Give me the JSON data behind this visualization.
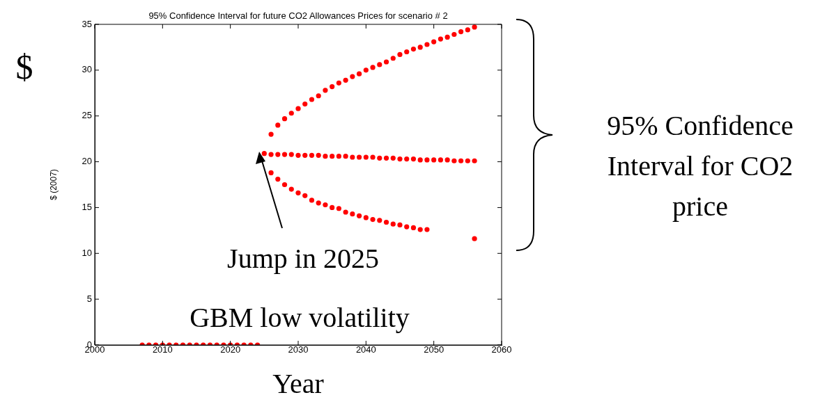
{
  "chart_data": {
    "type": "scatter",
    "title": "95% Confidence Interval for future CO2 Allowances Prices for scenario # 2",
    "xlabel": "Year",
    "ylabel": "$ (2007)",
    "xlim": [
      2000,
      2060
    ],
    "xticks": [
      2000,
      2010,
      2020,
      2030,
      2040,
      2050,
      2060
    ],
    "ylim": [
      0,
      35
    ],
    "yticks": [
      0,
      5,
      10,
      15,
      20,
      25,
      30,
      35
    ],
    "grid": false,
    "legend": false,
    "marker": "circle",
    "series": [
      {
        "color": "#ff0000",
        "x": [
          2007,
          2008,
          2009,
          2010,
          2011,
          2012,
          2013,
          2014,
          2015,
          2016,
          2017,
          2018,
          2019,
          2020,
          2021,
          2022,
          2023,
          2024
        ],
        "values": [
          0,
          0,
          0,
          0,
          0,
          0,
          0,
          0,
          0,
          0,
          0,
          0,
          0,
          0,
          0,
          0,
          0,
          0
        ]
      },
      {
        "color": "#ff0000",
        "x": [
          2026,
          2027,
          2028,
          2029,
          2030,
          2031,
          2032,
          2033,
          2034,
          2035,
          2036,
          2037,
          2038,
          2039,
          2040,
          2041,
          2042,
          2043,
          2044,
          2045,
          2046,
          2047,
          2048,
          2049,
          2050,
          2051,
          2052,
          2053,
          2054,
          2055,
          2056
        ],
        "values": [
          23.0,
          24.0,
          24.7,
          25.3,
          25.8,
          26.3,
          26.8,
          27.2,
          27.8,
          28.2,
          28.6,
          28.9,
          29.3,
          29.6,
          30.0,
          30.3,
          30.6,
          30.9,
          31.3,
          31.7,
          32.0,
          32.3,
          32.5,
          32.8,
          33.1,
          33.4,
          33.6,
          33.9,
          34.2,
          34.4,
          34.7
        ]
      },
      {
        "color": "#ff0000",
        "x": [
          2025,
          2026,
          2027,
          2028,
          2029,
          2030,
          2031,
          2032,
          2033,
          2034,
          2035,
          2036,
          2037,
          2038,
          2039,
          2040,
          2041,
          2042,
          2043,
          2044,
          2045,
          2046,
          2047,
          2048,
          2049,
          2050,
          2051,
          2052,
          2053,
          2054,
          2055,
          2056
        ],
        "values": [
          20.9,
          20.8,
          20.8,
          20.8,
          20.8,
          20.7,
          20.7,
          20.7,
          20.7,
          20.6,
          20.6,
          20.6,
          20.6,
          20.5,
          20.5,
          20.5,
          20.5,
          20.4,
          20.4,
          20.4,
          20.3,
          20.3,
          20.3,
          20.2,
          20.2,
          20.2,
          20.2,
          20.2,
          20.1,
          20.1,
          20.1,
          20.1
        ]
      },
      {
        "color": "#ff0000",
        "x": [
          2026,
          2027,
          2028,
          2029,
          2030,
          2031,
          2032,
          2033,
          2034,
          2035,
          2036,
          2037,
          2038,
          2039,
          2040,
          2041,
          2042,
          2043,
          2044,
          2045,
          2046,
          2047,
          2048,
          2049,
          2050,
          2051,
          2052,
          2053,
          2054,
          2055,
          2056
        ],
        "values": [
          18.8,
          18.1,
          17.5,
          17.0,
          16.6,
          16.3,
          15.8,
          15.5,
          15.3,
          15.0,
          14.9,
          14.5,
          14.3,
          14.1,
          13.9,
          13.7,
          13.6,
          13.4,
          13.2,
          13.1,
          12.9,
          12.8,
          12.6,
          12.6,
          null,
          null,
          null,
          null,
          null,
          null,
          11.6
        ]
      }
    ],
    "annotations": [
      "$",
      "Jump in 2025",
      "GBM low volatility",
      "95% Confidence Interval for CO2 price"
    ]
  }
}
